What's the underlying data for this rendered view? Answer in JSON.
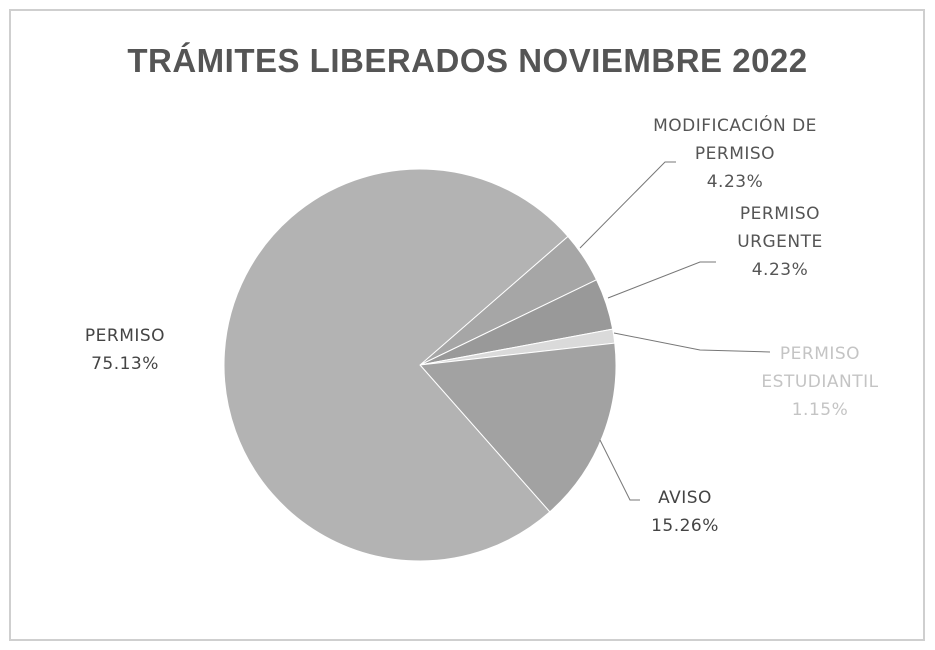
{
  "chart_data": {
    "type": "pie",
    "title": "TRÁMITES LIBERADOS NOVIEMBRE 2022",
    "categories": [
      "MODIFICACIÓN DE PERMISO",
      "PERMISO URGENTE",
      "PERMISO ESTUDIANTIL",
      "AVISO",
      "PERMISO"
    ],
    "values": [
      4.23,
      4.23,
      1.15,
      15.26,
      75.13
    ],
    "value_labels": [
      "4.23%",
      "4.23%",
      "1.15%",
      "15.26%",
      "75.13%"
    ],
    "colors": [
      "#a6a6a6",
      "#999999",
      "#dadada",
      "#a2a2a2",
      "#b3b3b3"
    ],
    "label_colors": [
      "#555555",
      "#555555",
      "#c4c4c4",
      "#444444",
      "#444444"
    ]
  }
}
